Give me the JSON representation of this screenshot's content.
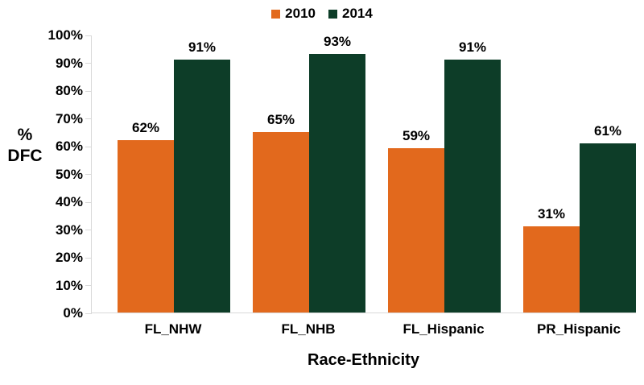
{
  "chart_data": {
    "type": "bar",
    "title": "",
    "categories": [
      "FL_NHW",
      "FL_NHB",
      "FL_Hispanic",
      "PR_Hispanic"
    ],
    "series": [
      {
        "name": "2010",
        "color": "#E2691D",
        "values": [
          62,
          65,
          59,
          31
        ]
      },
      {
        "name": "2014",
        "color": "#0D3D28",
        "values": [
          91,
          93,
          91,
          61
        ]
      }
    ],
    "value_label_format": "{v}%",
    "xlabel": "Race-Ethnicity",
    "ylabel": "% DFC",
    "ylim": [
      0,
      100
    ],
    "ytick_step": 10,
    "ytick_labels": [
      "0%",
      "10%",
      "20%",
      "30%",
      "40%",
      "50%",
      "60%",
      "70%",
      "80%",
      "90%",
      "100%"
    ],
    "grid": false,
    "legend_position": "top-center",
    "axis_color": "#D9D9D9",
    "text_color": "#000000"
  }
}
